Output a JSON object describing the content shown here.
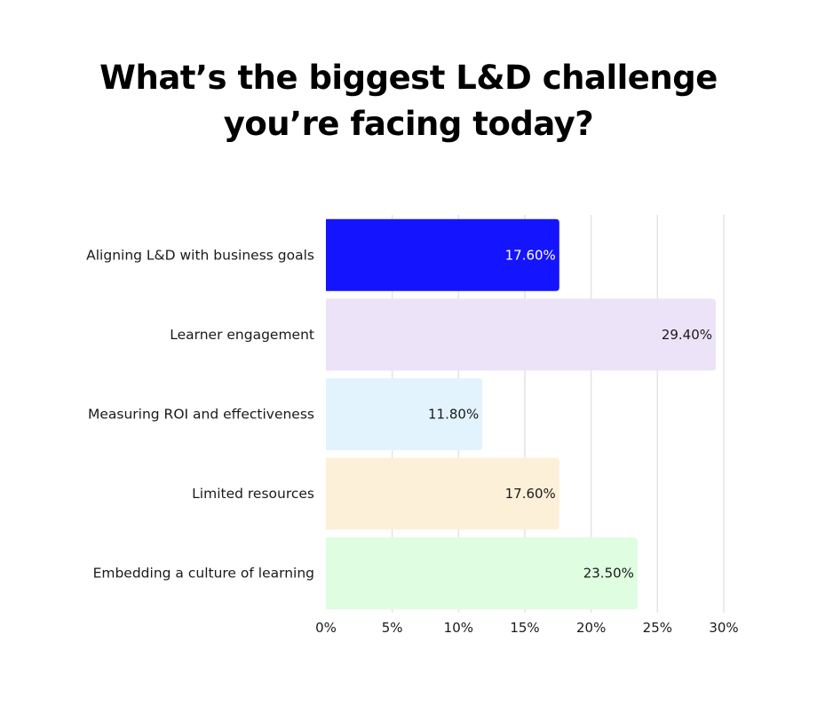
{
  "chart_data": {
    "type": "bar",
    "orientation": "horizontal",
    "title_lines": [
      "What’s the biggest L&D challenge",
      "you’re facing today?"
    ],
    "categories": [
      "Aligning L&D with business goals",
      "Learner engagement",
      "Measuring ROI and effectiveness",
      "Limited resources",
      "Embedding a culture of learning"
    ],
    "values": [
      17.6,
      29.4,
      11.8,
      17.6,
      23.5
    ],
    "data_labels": [
      "17.60%",
      "29.40%",
      "11.80%",
      "17.60%",
      "23.50%"
    ],
    "colors": [
      "#1414FF",
      "#ECE3F8",
      "#E3F3FE",
      "#FDF0D9",
      "#DFFDE0"
    ],
    "label_colors": [
      "#FFFFFF",
      "#1a1a1a",
      "#1a1a1a",
      "#1a1a1a",
      "#1a1a1a"
    ],
    "xlim": [
      0,
      30
    ],
    "xticks": [
      0,
      5,
      10,
      15,
      20,
      25,
      30
    ],
    "xtick_labels": [
      "0%",
      "5%",
      "10%",
      "15%",
      "20%",
      "25%",
      "30%"
    ],
    "grid": true,
    "xlabel": "",
    "ylabel": ""
  }
}
